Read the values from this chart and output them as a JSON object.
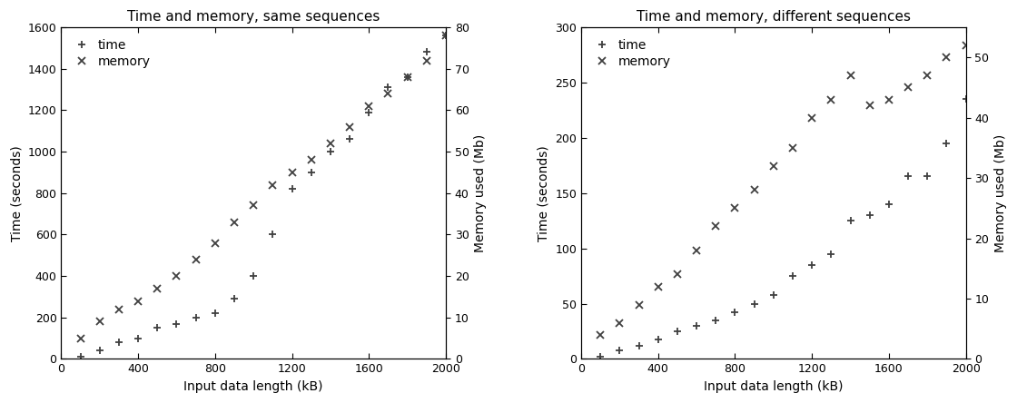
{
  "plot1": {
    "title": "Time and memory, same sequences",
    "xlabel": "Input data length (kB)",
    "ylabel_left": "Time (seconds)",
    "ylabel_right": "Memory used (Mb)",
    "ylim_left": [
      0,
      1600
    ],
    "ylim_right": [
      0,
      80
    ],
    "xlim": [
      0,
      2000
    ],
    "time_x": [
      100,
      200,
      300,
      400,
      500,
      600,
      700,
      800,
      900,
      1000,
      1100,
      1200,
      1300,
      1400,
      1500,
      1600,
      1700,
      1800,
      1900,
      2000
    ],
    "time_y": [
      10,
      40,
      80,
      100,
      150,
      170,
      200,
      220,
      290,
      400,
      600,
      820,
      900,
      1000,
      1060,
      1190,
      1310,
      1360,
      1480,
      1560
    ],
    "memory_x": [
      100,
      200,
      300,
      400,
      500,
      600,
      700,
      800,
      900,
      1000,
      1100,
      1200,
      1300,
      1400,
      1500,
      1600,
      1700,
      1800,
      1900,
      2000
    ],
    "memory_y": [
      5,
      9,
      12,
      14,
      17,
      20,
      24,
      28,
      33,
      37,
      42,
      45,
      48,
      52,
      56,
      61,
      64,
      68,
      72,
      78
    ],
    "yticks_left": [
      0,
      200,
      400,
      600,
      800,
      1000,
      1200,
      1400,
      1600
    ],
    "yticks_right": [
      0,
      10,
      20,
      30,
      40,
      50,
      60,
      70,
      80
    ],
    "xticks": [
      0,
      400,
      800,
      1200,
      1600,
      2000
    ]
  },
  "plot2": {
    "title": "Time and memory, different sequences",
    "xlabel": "Input data length (kB)",
    "ylabel_left": "Time (seconds)",
    "ylabel_right": "Memory used (Mb)",
    "ylim_left": [
      0,
      300
    ],
    "ylim_right": [
      0,
      55
    ],
    "xlim": [
      0,
      2000
    ],
    "time_x": [
      100,
      200,
      300,
      400,
      500,
      600,
      700,
      800,
      900,
      1000,
      1100,
      1200,
      1300,
      1400,
      1500,
      1600,
      1700,
      1800,
      1900,
      2000
    ],
    "time_y": [
      2,
      8,
      12,
      18,
      25,
      30,
      35,
      42,
      50,
      58,
      75,
      85,
      95,
      125,
      130,
      140,
      165,
      165,
      195,
      235
    ],
    "memory_x": [
      100,
      200,
      300,
      400,
      500,
      600,
      700,
      800,
      900,
      1000,
      1100,
      1200,
      1300,
      1400,
      1500,
      1600,
      1700,
      1800,
      1900,
      2000
    ],
    "memory_y": [
      4,
      6,
      9,
      12,
      14,
      18,
      22,
      25,
      28,
      32,
      35,
      40,
      43,
      47,
      42,
      43,
      45,
      47,
      50,
      52
    ],
    "yticks_left": [
      0,
      50,
      100,
      150,
      200,
      250,
      300
    ],
    "yticks_right": [
      0,
      10,
      20,
      30,
      40,
      50
    ],
    "xticks": [
      0,
      400,
      800,
      1200,
      1600,
      2000
    ]
  },
  "marker_time": "+",
  "marker_memory": "x",
  "marker_size": 6,
  "marker_color": "#404040",
  "legend_fontsize": 10,
  "axis_fontsize": 10,
  "title_fontsize": 11,
  "tick_fontsize": 9,
  "background_color": "#ffffff",
  "figure_width": 11.2,
  "figure_height": 4.44,
  "dpi": 100
}
